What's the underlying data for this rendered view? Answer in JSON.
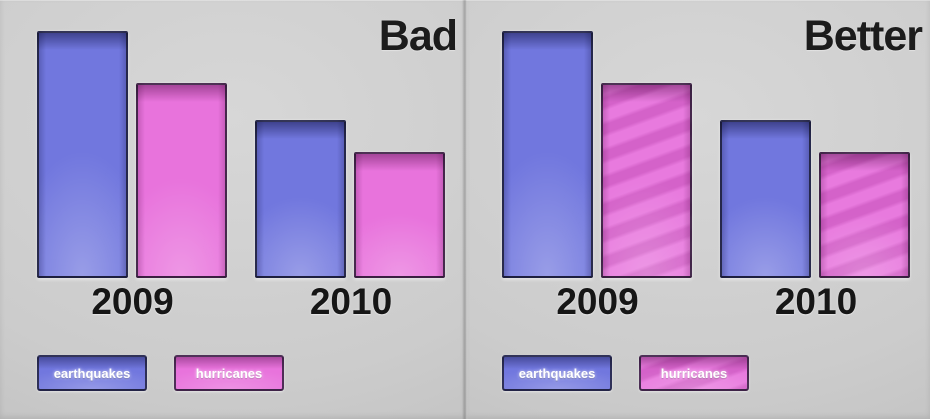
{
  "panels": [
    {
      "title": "Bad",
      "categories": [
        "2009",
        "2010"
      ],
      "striped_hurricanes": false
    },
    {
      "title": "Better",
      "categories": [
        "2009",
        "2010"
      ],
      "striped_hurricanes": true
    }
  ],
  "legend": {
    "earthquakes": "earthquakes",
    "hurricanes": "hurricanes"
  },
  "chart_data": [
    {
      "type": "bar",
      "title": "Bad",
      "categories": [
        "2009",
        "2010"
      ],
      "series": [
        {
          "name": "earthquakes",
          "values": [
            100,
            64
          ],
          "color": "#7177de",
          "pattern": "solid"
        },
        {
          "name": "hurricanes",
          "values": [
            79,
            51
          ],
          "color": "#e873dc",
          "pattern": "solid"
        }
      ],
      "xlabel": "",
      "ylabel": "",
      "ylim": [
        0,
        100
      ],
      "units": "relative (no value axis shown)",
      "grid": false,
      "axes_shown": false,
      "legend_position": "bottom-left"
    },
    {
      "type": "bar",
      "title": "Better",
      "categories": [
        "2009",
        "2010"
      ],
      "series": [
        {
          "name": "earthquakes",
          "values": [
            100,
            64
          ],
          "color": "#7177de",
          "pattern": "solid"
        },
        {
          "name": "hurricanes",
          "values": [
            79,
            51
          ],
          "color": "#e873dc",
          "pattern": "diagonal-stripes"
        }
      ],
      "xlabel": "",
      "ylabel": "",
      "ylim": [
        0,
        100
      ],
      "units": "relative (no value axis shown)",
      "grid": false,
      "axes_shown": false,
      "legend_position": "bottom-left"
    }
  ],
  "colors": {
    "earthquakes_fill": "#7177de",
    "hurricanes_fill": "#e873dc",
    "hurricane_stripe_light": "#e87ade",
    "hurricane_stripe_dark": "#d462c9",
    "background": "#cccccc",
    "title_text": "#1c1c1c",
    "axis_text": "#161616",
    "legend_text": "#ffffff"
  }
}
